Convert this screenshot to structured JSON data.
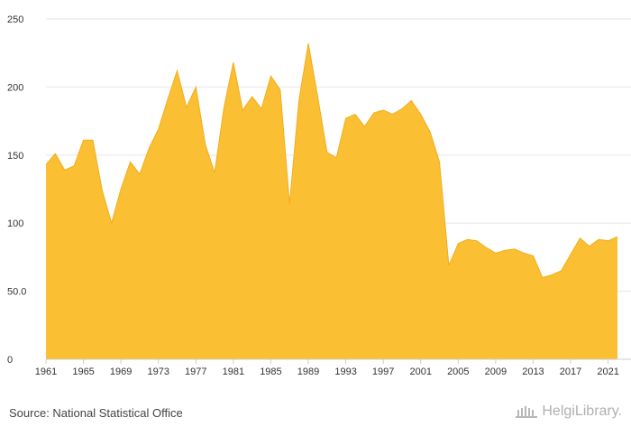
{
  "source": "Source: National Statistical Office",
  "logo_text": "HelgiLibrary.",
  "chart_data": {
    "type": "area",
    "title": "",
    "xlabel": "",
    "ylabel": "",
    "fill_color": "#fbbf33",
    "line_color": "#f2ad1a",
    "ylim": [
      0,
      250
    ],
    "y_ticks": [
      0,
      50,
      100,
      150,
      200,
      250
    ],
    "y_tick_labels": [
      "0",
      "50.0",
      "100",
      "150",
      "200",
      "250"
    ],
    "x_ticks": [
      1961,
      1965,
      1969,
      1973,
      1977,
      1981,
      1985,
      1989,
      1993,
      1997,
      2001,
      2005,
      2009,
      2013,
      2017,
      2021
    ],
    "grid": true,
    "x": [
      1961,
      1962,
      1963,
      1964,
      1965,
      1966,
      1967,
      1968,
      1969,
      1970,
      1971,
      1972,
      1973,
      1974,
      1975,
      1976,
      1977,
      1978,
      1979,
      1980,
      1981,
      1982,
      1983,
      1984,
      1985,
      1986,
      1987,
      1988,
      1989,
      1990,
      1991,
      1992,
      1993,
      1994,
      1995,
      1996,
      1997,
      1998,
      1999,
      2000,
      2001,
      2002,
      2003,
      2004,
      2005,
      2006,
      2007,
      2008,
      2009,
      2010,
      2011,
      2012,
      2013,
      2014,
      2015,
      2016,
      2017,
      2018,
      2019,
      2020,
      2021,
      2022
    ],
    "values": [
      143,
      151,
      139,
      142,
      161,
      161,
      124,
      100,
      125,
      145,
      136,
      155,
      169,
      191,
      212,
      185,
      200,
      158,
      137,
      185,
      218,
      183,
      193,
      184,
      208,
      198,
      114,
      190,
      232,
      193,
      152,
      148,
      177,
      180,
      171,
      181,
      183,
      180,
      184,
      190,
      180,
      167,
      145,
      69,
      85,
      88,
      87,
      82,
      78,
      80,
      81,
      78,
      76,
      60,
      62,
      65,
      77,
      89,
      83,
      88,
      87,
      90
    ]
  }
}
